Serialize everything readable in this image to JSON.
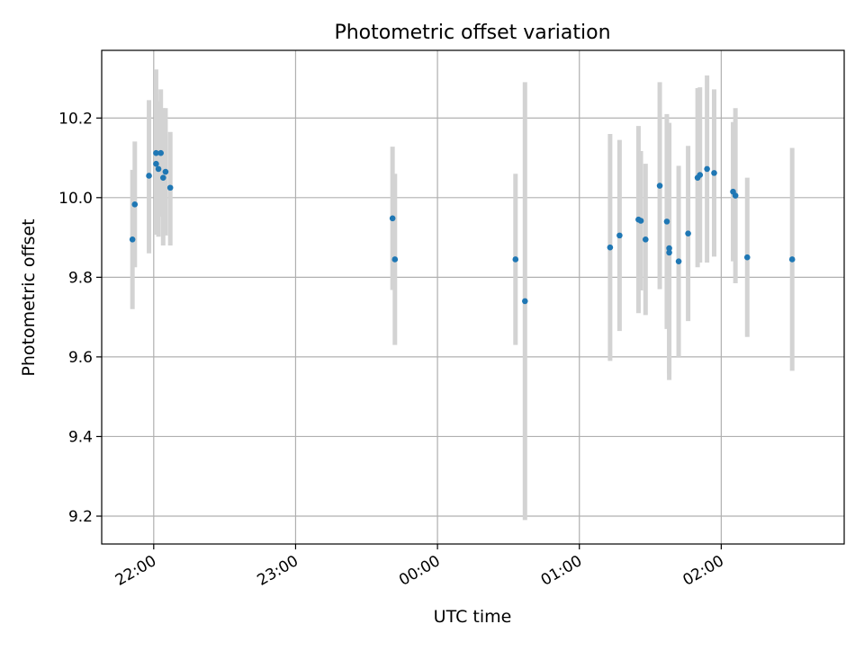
{
  "chart_data": {
    "type": "scatter",
    "title": "Photometric offset variation",
    "xlabel": "UTC time",
    "ylabel": "Photometric offset",
    "x_axis_type": "time",
    "xlim": [
      "21:38",
      "02:52"
    ],
    "ylim": [
      9.13,
      10.37
    ],
    "x_ticks": [
      "22:00",
      "23:00",
      "00:00",
      "01:00",
      "02:00"
    ],
    "y_ticks": [
      "9.2",
      "9.4",
      "9.6",
      "9.8",
      "10.0",
      "10.2"
    ],
    "grid": true,
    "legend": "none",
    "colors": {
      "point": "#1f77b4",
      "errorbar": "#d3d3d3",
      "grid": "#b0b0b0",
      "axes": "#000000"
    },
    "series": [
      {
        "points": [
          {
            "x": "21:51",
            "y": 9.895,
            "err_low": 0.175,
            "err_high": 0.175
          },
          {
            "x": "21:52",
            "y": 9.983,
            "err_low": 0.158,
            "err_high": 0.158
          },
          {
            "x": "21:58",
            "y": 10.055,
            "err_low": 0.195,
            "err_high": 0.19
          },
          {
            "x": "22:01",
            "y": 10.112,
            "err_low": 0.205,
            "err_high": 0.21
          },
          {
            "x": "22:01",
            "y": 10.085,
            "err_low": 0.175,
            "err_high": 0.175
          },
          {
            "x": "22:02",
            "y": 10.072,
            "err_low": 0.17,
            "err_high": 0.17
          },
          {
            "x": "22:03",
            "y": 10.112,
            "err_low": 0.16,
            "err_high": 0.16
          },
          {
            "x": "22:04",
            "y": 10.05,
            "err_low": 0.17,
            "err_high": 0.175
          },
          {
            "x": "22:05",
            "y": 10.065,
            "err_low": 0.16,
            "err_high": 0.16
          },
          {
            "x": "22:07",
            "y": 10.025,
            "err_low": 0.145,
            "err_high": 0.14
          },
          {
            "x": "23:41",
            "y": 9.948,
            "err_low": 0.18,
            "err_high": 0.18
          },
          {
            "x": "23:42",
            "y": 9.845,
            "err_low": 0.215,
            "err_high": 0.215
          },
          {
            "x": "00:33",
            "y": 9.845,
            "err_low": 0.215,
            "err_high": 0.215
          },
          {
            "x": "00:37",
            "y": 9.74,
            "err_low": 0.55,
            "err_high": 0.55
          },
          {
            "x": "01:13",
            "y": 9.875,
            "err_low": 0.285,
            "err_high": 0.285
          },
          {
            "x": "01:17",
            "y": 9.905,
            "err_low": 0.24,
            "err_high": 0.24
          },
          {
            "x": "01:25",
            "y": 9.945,
            "err_low": 0.235,
            "err_high": 0.235
          },
          {
            "x": "01:26",
            "y": 9.942,
            "err_low": 0.175,
            "err_high": 0.175
          },
          {
            "x": "01:28",
            "y": 9.895,
            "err_low": 0.19,
            "err_high": 0.19
          },
          {
            "x": "01:34",
            "y": 10.03,
            "err_low": 0.26,
            "err_high": 0.26
          },
          {
            "x": "01:37",
            "y": 9.94,
            "err_low": 0.27,
            "err_high": 0.27
          },
          {
            "x": "01:38",
            "y": 9.862,
            "err_low": 0.32,
            "err_high": 0.32
          },
          {
            "x": "01:38",
            "y": 9.873,
            "err_low": 0.315,
            "err_high": 0.315
          },
          {
            "x": "01:42",
            "y": 9.84,
            "err_low": 0.24,
            "err_high": 0.24
          },
          {
            "x": "01:46",
            "y": 9.91,
            "err_low": 0.22,
            "err_high": 0.22
          },
          {
            "x": "01:50",
            "y": 10.05,
            "err_low": 0.225,
            "err_high": 0.225
          },
          {
            "x": "01:51",
            "y": 10.057,
            "err_low": 0.22,
            "err_high": 0.22
          },
          {
            "x": "01:54",
            "y": 10.072,
            "err_low": 0.235,
            "err_high": 0.235
          },
          {
            "x": "01:57",
            "y": 10.062,
            "err_low": 0.21,
            "err_high": 0.21
          },
          {
            "x": "02:05",
            "y": 10.015,
            "err_low": 0.175,
            "err_high": 0.175
          },
          {
            "x": "02:06",
            "y": 10.005,
            "err_low": 0.22,
            "err_high": 0.22
          },
          {
            "x": "02:11",
            "y": 9.85,
            "err_low": 0.2,
            "err_high": 0.2
          },
          {
            "x": "02:30",
            "y": 9.845,
            "err_low": 0.28,
            "err_high": 0.28
          }
        ]
      }
    ]
  }
}
